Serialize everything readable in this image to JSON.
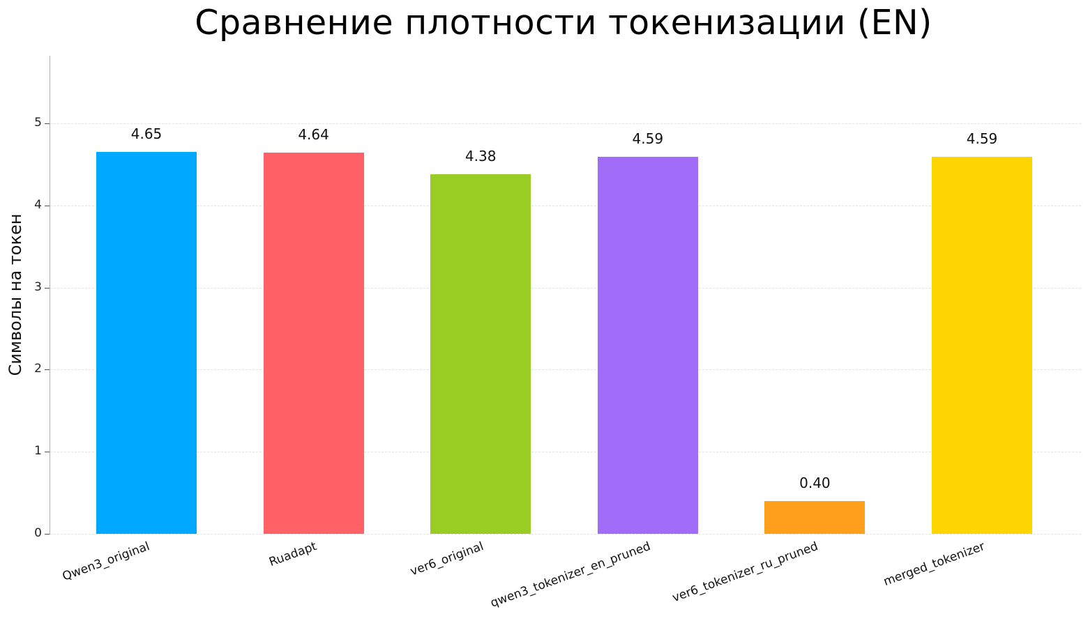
{
  "chart_data": {
    "type": "bar",
    "title": "Сравнение плотности токенизации (EN)",
    "xlabel": "",
    "ylabel": "Символы на токен",
    "ylim": [
      0,
      5.8
    ],
    "yticks": [
      "0",
      "1",
      "2",
      "3",
      "4",
      "5"
    ],
    "grid": true,
    "legend": null,
    "categories": [
      "Qwen3_original",
      "Ruadapt",
      "ver6_original",
      "qwen3_tokenizer_en_pruned",
      "ver6_tokenizer_ru_pruned",
      "merged_tokenizer"
    ],
    "values": [
      4.65,
      4.64,
      4.38,
      4.59,
      0.4,
      4.59
    ],
    "value_labels": [
      "4.65",
      "4.64",
      "4.38",
      "4.59",
      "0.40",
      "4.59"
    ],
    "colors": [
      "#00a8ff",
      "#ff6166",
      "#9acd23",
      "#a06cf8",
      "#ff9f1c",
      "#ffd500"
    ]
  }
}
